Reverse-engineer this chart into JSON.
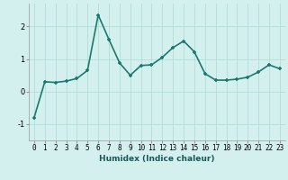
{
  "x": [
    0,
    1,
    2,
    3,
    4,
    5,
    6,
    7,
    8,
    9,
    10,
    11,
    12,
    13,
    14,
    15,
    16,
    17,
    18,
    19,
    20,
    21,
    22,
    23
  ],
  "y": [
    -0.8,
    0.3,
    0.28,
    0.32,
    0.4,
    0.65,
    2.35,
    1.6,
    0.88,
    0.5,
    0.8,
    0.82,
    1.05,
    1.35,
    1.55,
    1.22,
    0.55,
    0.35,
    0.35,
    0.38,
    0.44,
    0.6,
    0.82,
    0.7
  ],
  "line_color": "#1a7a6e",
  "marker": "+",
  "marker_size": 3.5,
  "marker_linewidth": 1.2,
  "bg_color": "#d4f0ee",
  "grid_color": "#b0ddd8",
  "xlabel": "Humidex (Indice chaleur)",
  "xlabel_fontsize": 6.5,
  "ylim": [
    -1.5,
    2.7
  ],
  "xlim": [
    -0.5,
    23.5
  ],
  "yticks": [
    -1,
    0,
    1,
    2
  ],
  "xticks": [
    0,
    1,
    2,
    3,
    4,
    5,
    6,
    7,
    8,
    9,
    10,
    11,
    12,
    13,
    14,
    15,
    16,
    17,
    18,
    19,
    20,
    21,
    22,
    23
  ],
  "tick_fontsize": 5.5,
  "linewidth": 1.2
}
